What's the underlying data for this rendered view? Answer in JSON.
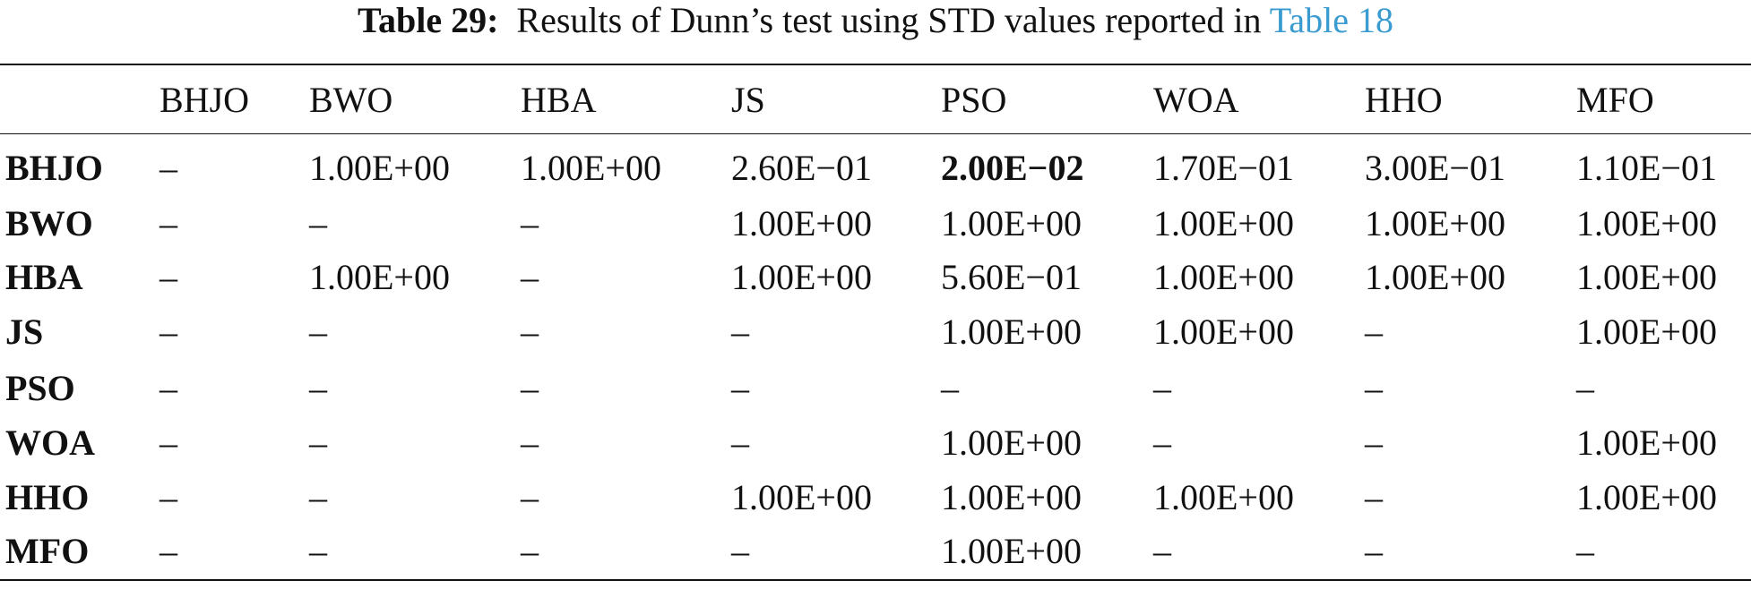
{
  "caption": {
    "label": "Table 29:",
    "text": "Results of Dunn’s test using STD values reported in",
    "link": "Table 18"
  },
  "table": {
    "columns": [
      "BHJO",
      "BWO",
      "HBA",
      "JS",
      "PSO",
      "WOA",
      "HHO",
      "MFO"
    ],
    "rows": [
      {
        "label": "BHJO",
        "cells": [
          "–",
          "1.00E+00",
          "1.00E+00",
          "2.60E−01",
          "2.00E−02",
          "1.70E−01",
          "3.00E−01",
          "1.10E−01"
        ],
        "bold_cells": [
          4
        ]
      },
      {
        "label": "BWO",
        "cells": [
          "–",
          "–",
          "–",
          "1.00E+00",
          "1.00E+00",
          "1.00E+00",
          "1.00E+00",
          "1.00E+00"
        ]
      },
      {
        "label": "HBA",
        "cells": [
          "–",
          "1.00E+00",
          "–",
          "1.00E+00",
          "5.60E−01",
          "1.00E+00",
          "1.00E+00",
          "1.00E+00"
        ]
      },
      {
        "label": "JS",
        "cells": [
          "–",
          "–",
          "–",
          "–",
          "1.00E+00",
          "1.00E+00",
          "–",
          "1.00E+00"
        ]
      },
      {
        "label": "PSO",
        "cells": [
          "–",
          "–",
          "–",
          "–",
          "–",
          "–",
          "–",
          "–"
        ]
      },
      {
        "label": "WOA",
        "cells": [
          "–",
          "–",
          "–",
          "–",
          "1.00E+00",
          "–",
          "–",
          "1.00E+00"
        ]
      },
      {
        "label": "HHO",
        "cells": [
          "–",
          "–",
          "–",
          "1.00E+00",
          "1.00E+00",
          "1.00E+00",
          "–",
          "1.00E+00"
        ]
      },
      {
        "label": "MFO",
        "cells": [
          "–",
          "–",
          "–",
          "–",
          "1.00E+00",
          "–",
          "–",
          "–"
        ]
      }
    ]
  }
}
